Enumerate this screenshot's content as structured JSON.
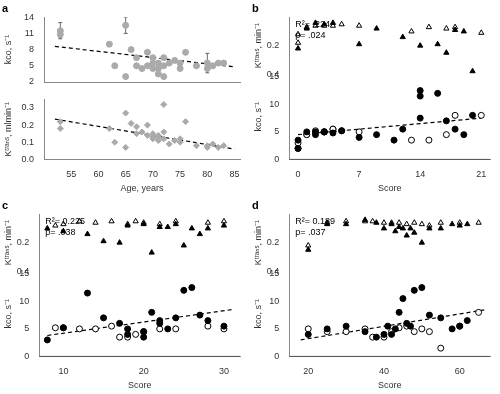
{
  "chart_data": [
    {
      "type": "scatter",
      "title": "a",
      "grid": false,
      "tick_labels": "y",
      "ylabel": "kco, s⁻¹",
      "xlim": [
        50,
        86
      ],
      "xticks": [
        55,
        60,
        65,
        70,
        75,
        80,
        85
      ],
      "ylim": [
        2,
        14
      ],
      "yticks": [
        2,
        5,
        8,
        11,
        14
      ],
      "series": [
        {
          "type": "scatter",
          "marker": "circle",
          "color": "#aaaaaa",
          "x": [
            53,
            53,
            62,
            63,
            65,
            65,
            66,
            67,
            67,
            68,
            69,
            69,
            70,
            70,
            70,
            71,
            71,
            71,
            72,
            72,
            72,
            73,
            74,
            75,
            75,
            76,
            78,
            80,
            80,
            81,
            82,
            83
          ],
          "values": [
            11.5,
            10.8,
            9.0,
            5.0,
            12.5,
            3.0,
            8.0,
            5.0,
            6.5,
            4.5,
            7.5,
            5.0,
            5.5,
            6.5,
            4.5,
            5.5,
            4.5,
            3.5,
            3.0,
            6.5,
            5.0,
            5.5,
            6.0,
            5.5,
            4.5,
            7.5,
            5.0,
            5.5,
            4.5,
            5.0,
            5.5,
            5.5
          ],
          "yerr": [
            1.5,
            0.5,
            0.3,
            0.3,
            1.5,
            0.3,
            0.3,
            0.3,
            0.3,
            0.3,
            0.3,
            0.3,
            0.3,
            0.3,
            0.3,
            0.3,
            0.3,
            0.3,
            0.3,
            0.3,
            0.3,
            0.3,
            0.3,
            0.3,
            0.3,
            0.3,
            0.3,
            1.8,
            0.3,
            0.3,
            0.3,
            0.3
          ]
        },
        {
          "type": "line",
          "line_style": "dashed",
          "color": "#000000",
          "x": [
            52,
            85
          ],
          "values": [
            8.6,
            4.8
          ]
        }
      ]
    },
    {
      "type": "scatter",
      "grid": false,
      "xlabel": "Age, years",
      "ylabel": "Kᵗʳᵃⁿˢ, mlmin⁻¹",
      "xlim": [
        50,
        86
      ],
      "xticks": [
        55,
        60,
        65,
        70,
        75,
        80,
        85
      ],
      "ylim": [
        0.0,
        0.35
      ],
      "yticks": [
        {
          "value": 0.0,
          "label": "0.0"
        },
        0.1,
        0.2,
        0.3
      ],
      "series": [
        {
          "type": "scatter",
          "marker": "diamond",
          "color": "#aaaaaa",
          "x": [
            53,
            53,
            62,
            63,
            65,
            65,
            66,
            67,
            67,
            68,
            69,
            69,
            70,
            70,
            70,
            71,
            71,
            71,
            72,
            72,
            72,
            73,
            74,
            75,
            75,
            76,
            78,
            80,
            80,
            81,
            82,
            83
          ],
          "values": [
            0.18,
            0.22,
            0.18,
            0.1,
            0.27,
            0.07,
            0.21,
            0.15,
            0.19,
            0.16,
            0.14,
            0.2,
            0.12,
            0.15,
            0.13,
            0.13,
            0.11,
            0.14,
            0.32,
            0.16,
            0.12,
            0.09,
            0.11,
            0.12,
            0.1,
            0.22,
            0.08,
            0.08,
            0.07,
            0.09,
            0.07,
            0.08
          ]
        },
        {
          "type": "line",
          "line_style": "dashed",
          "color": "#000000",
          "x": [
            52,
            85
          ],
          "values": [
            0.235,
            0.06
          ]
        }
      ]
    },
    {
      "type": "scatter",
      "title": "b",
      "grid": false,
      "annotation": [
        "R²= .224",
        "p= .024"
      ],
      "xlabel": "Score",
      "ylabel": "kco, s⁻¹",
      "y2label": "Kᵗʳᵃⁿˢ, min⁻¹",
      "xlim": [
        -1,
        22
      ],
      "xticks": [
        0,
        7,
        14,
        21
      ],
      "ylim": [
        0,
        15.5
      ],
      "yticks": [
        0,
        5,
        10,
        15
      ],
      "y2lim": [
        0.4,
        0.0
      ],
      "y2ticks": [
        0.2,
        0.4
      ],
      "series": [
        {
          "type": "scatter",
          "marker": "circle",
          "color": "#000000",
          "x": [
            0,
            0,
            1,
            2,
            2,
            3,
            3,
            4,
            5,
            7,
            9,
            11,
            12,
            14,
            14,
            14,
            16,
            17,
            18,
            19,
            20
          ],
          "values": [
            2.0,
            3.5,
            5.0,
            5.0,
            4.5,
            5.0,
            5.0,
            4.8,
            5.2,
            4.0,
            4.5,
            3.5,
            5.5,
            12.5,
            11.5,
            7.5,
            12.0,
            7.0,
            5.5,
            4.5,
            8.0
          ]
        },
        {
          "type": "scatter",
          "marker": "circle-open",
          "color": "#000000",
          "x": [
            0,
            0,
            1,
            1,
            2,
            3,
            3,
            4,
            4,
            5,
            7,
            13,
            15,
            17,
            18,
            21
          ],
          "values": [
            2.0,
            3.0,
            4.5,
            4.5,
            5.2,
            5.0,
            5.0,
            5.5,
            5.5,
            5.2,
            5.0,
            3.5,
            3.5,
            4.5,
            8.0,
            8.0
          ]
        },
        {
          "type": "scatter",
          "marker": "triangle",
          "color": "#000000",
          "axis": "y2",
          "x": [
            0,
            1,
            2,
            3,
            4,
            7,
            9,
            12,
            14,
            16,
            17,
            18,
            19,
            20
          ],
          "values": [
            0.22,
            0.08,
            0.04,
            0.05,
            0.04,
            0.19,
            0.08,
            0.14,
            0.2,
            0.19,
            0.25,
            0.09,
            0.1,
            0.38
          ]
        },
        {
          "type": "scatter",
          "marker": "triangle-open",
          "color": "#000000",
          "axis": "y2",
          "x": [
            0,
            0,
            1,
            2,
            3,
            4,
            5,
            7,
            13,
            15,
            17,
            18,
            21
          ],
          "values": [
            0.12,
            0.18,
            0.07,
            0.06,
            0.06,
            0.06,
            0.05,
            0.06,
            0.1,
            0.07,
            0.08,
            0.07,
            0.11
          ]
        },
        {
          "type": "line",
          "line_style": "dashed",
          "color": "#000000",
          "x": [
            0,
            21
          ],
          "values": [
            4.5,
            7.5
          ]
        }
      ]
    },
    {
      "type": "scatter",
      "title": "c",
      "grid": false,
      "annotation": [
        "R²= 0.225",
        "p= .038"
      ],
      "xlabel": "Score",
      "ylabel": "kco, s⁻¹",
      "y2label": "Kᵗʳᵃⁿˢ, min⁻¹",
      "xlim": [
        7,
        32
      ],
      "xticks": [
        10,
        20,
        30
      ],
      "ylim": [
        0,
        15.5
      ],
      "yticks": [
        0,
        5,
        10,
        15
      ],
      "y2lim": [
        0.4,
        0.0
      ],
      "y2ticks": [
        0.2,
        0.4
      ],
      "series": [
        {
          "type": "scatter",
          "marker": "circle",
          "color": "#000000",
          "x": [
            8,
            10,
            13,
            15,
            17,
            18,
            18,
            20,
            20,
            21,
            22,
            22,
            23,
            24,
            25,
            26,
            27,
            28,
            30
          ],
          "values": [
            3.0,
            5.2,
            11.5,
            7.0,
            6.0,
            5.0,
            4.0,
            3.5,
            4.5,
            8.0,
            6.5,
            6.0,
            5.0,
            7.0,
            12.0,
            12.5,
            7.5,
            6.5,
            5.5
          ]
        },
        {
          "type": "scatter",
          "marker": "circle-open",
          "color": "#000000",
          "x": [
            9,
            10,
            12,
            14,
            16,
            17,
            18,
            19,
            20,
            22,
            24,
            28,
            30
          ],
          "values": [
            5.2,
            5.2,
            5.0,
            5.0,
            5.5,
            3.5,
            3.5,
            4.0,
            4.5,
            5.0,
            5.0,
            5.5,
            5.0
          ]
        },
        {
          "type": "scatter",
          "marker": "triangle",
          "color": "#000000",
          "axis": "y2",
          "x": [
            8,
            10,
            13,
            15,
            17,
            18,
            20,
            21,
            22,
            23,
            24,
            25,
            26,
            27,
            28,
            30
          ],
          "values": [
            0.1,
            0.12,
            0.14,
            0.19,
            0.2,
            0.08,
            0.07,
            0.27,
            0.09,
            0.09,
            0.07,
            0.22,
            0.1,
            0.14,
            0.1,
            0.08
          ]
        },
        {
          "type": "scatter",
          "marker": "triangle-open",
          "color": "#000000",
          "axis": "y2",
          "x": [
            9,
            10,
            12,
            14,
            16,
            18,
            19,
            20,
            22,
            24,
            28,
            30
          ],
          "values": [
            0.08,
            0.07,
            0.05,
            0.06,
            0.05,
            0.07,
            0.05,
            0.06,
            0.07,
            0.05,
            0.06,
            0.05
          ]
        },
        {
          "type": "line",
          "line_style": "dashed",
          "color": "#000000",
          "x": [
            8,
            31
          ],
          "values": [
            3.8,
            8.5
          ]
        }
      ]
    },
    {
      "type": "scatter",
      "title": "d",
      "grid": false,
      "annotation": [
        "R²= 0.189",
        "p= .037"
      ],
      "xlabel": "Score",
      "ylabel": "kco, s⁻¹",
      "y2label": "Kᵗʳᵃⁿˢ, min⁻¹",
      "xlim": [
        15,
        68
      ],
      "xticks": [
        20,
        40,
        60
      ],
      "ylim": [
        0,
        15.5
      ],
      "yticks": [
        0,
        5,
        10,
        15
      ],
      "y2lim": [
        0.4,
        0.0
      ],
      "y2ticks": [
        0.2,
        0.4
      ],
      "series": [
        {
          "type": "scatter",
          "marker": "circle",
          "color": "#000000",
          "x": [
            20,
            25,
            30,
            35,
            38,
            40,
            41,
            42,
            43,
            44,
            45,
            46,
            47,
            48,
            50,
            52,
            55,
            58,
            60,
            62
          ],
          "values": [
            4.0,
            5.0,
            5.5,
            4.5,
            3.5,
            4.0,
            5.5,
            4.0,
            5.0,
            8.0,
            10.5,
            6.0,
            5.5,
            12.0,
            12.5,
            7.5,
            7.0,
            5.0,
            5.5,
            6.5
          ]
        },
        {
          "type": "scatter",
          "marker": "circle-open",
          "color": "#000000",
          "x": [
            20,
            25,
            30,
            35,
            37,
            40,
            42,
            44,
            46,
            48,
            50,
            52,
            55,
            60,
            65
          ],
          "values": [
            5.0,
            4.5,
            4.5,
            5.0,
            3.5,
            3.5,
            4.5,
            5.2,
            5.5,
            4.5,
            5.0,
            4.5,
            1.5,
            5.5,
            8.0
          ]
        },
        {
          "type": "scatter",
          "marker": "triangle",
          "color": "#000000",
          "axis": "y2",
          "x": [
            20,
            25,
            30,
            35,
            38,
            40,
            42,
            43,
            44,
            45,
            46,
            47,
            48,
            50,
            52,
            55,
            58,
            60,
            62
          ],
          "values": [
            0.25,
            0.07,
            0.07,
            0.04,
            0.06,
            0.1,
            0.07,
            0.12,
            0.09,
            0.1,
            0.15,
            0.1,
            0.13,
            0.2,
            0.1,
            0.1,
            0.07,
            0.08,
            0.07
          ]
        },
        {
          "type": "scatter",
          "marker": "triangle-open",
          "color": "#000000",
          "axis": "y2",
          "x": [
            20,
            25,
            30,
            35,
            37,
            40,
            42,
            44,
            46,
            48,
            50,
            52,
            55,
            60,
            65
          ],
          "values": [
            0.22,
            0.06,
            0.05,
            0.05,
            0.05,
            0.06,
            0.06,
            0.06,
            0.07,
            0.06,
            0.07,
            0.08,
            0.06,
            0.06,
            0.06
          ]
        },
        {
          "type": "line",
          "line_style": "dashed",
          "color": "#000000",
          "x": [
            18,
            67
          ],
          "values": [
            3.0,
            8.5
          ]
        }
      ]
    }
  ]
}
